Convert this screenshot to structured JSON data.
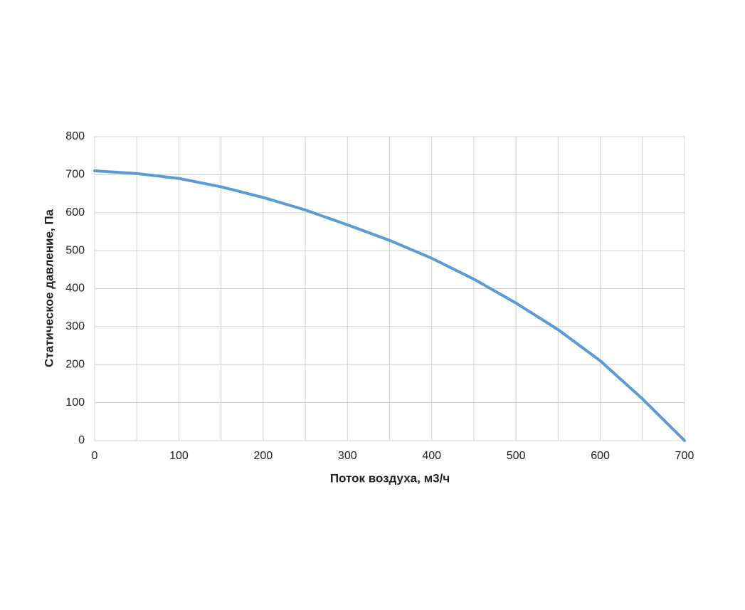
{
  "chart_data": {
    "type": "line",
    "x_label": "Поток воздуха, м3/ч",
    "y_label": "Статическое давление, Па",
    "x": [
      0,
      50,
      100,
      150,
      200,
      250,
      300,
      350,
      400,
      450,
      500,
      550,
      600,
      650,
      700
    ],
    "series": [
      {
        "color": "#5b9bd5",
        "values": [
          710,
          703,
          690,
          668,
          640,
          607,
          568,
          527,
          480,
          425,
          362,
          292,
          210,
          110,
          0
        ]
      }
    ],
    "xlim": [
      0,
      700
    ],
    "xticks": [
      0,
      100,
      200,
      300,
      400,
      500,
      600,
      700
    ],
    "x_minor_grid": [
      50,
      150,
      250,
      350,
      450,
      550,
      650
    ],
    "ylim": [
      0,
      800
    ],
    "yticks": [
      0,
      100,
      200,
      300,
      400,
      500,
      600,
      700,
      800
    ],
    "grid": true
  }
}
